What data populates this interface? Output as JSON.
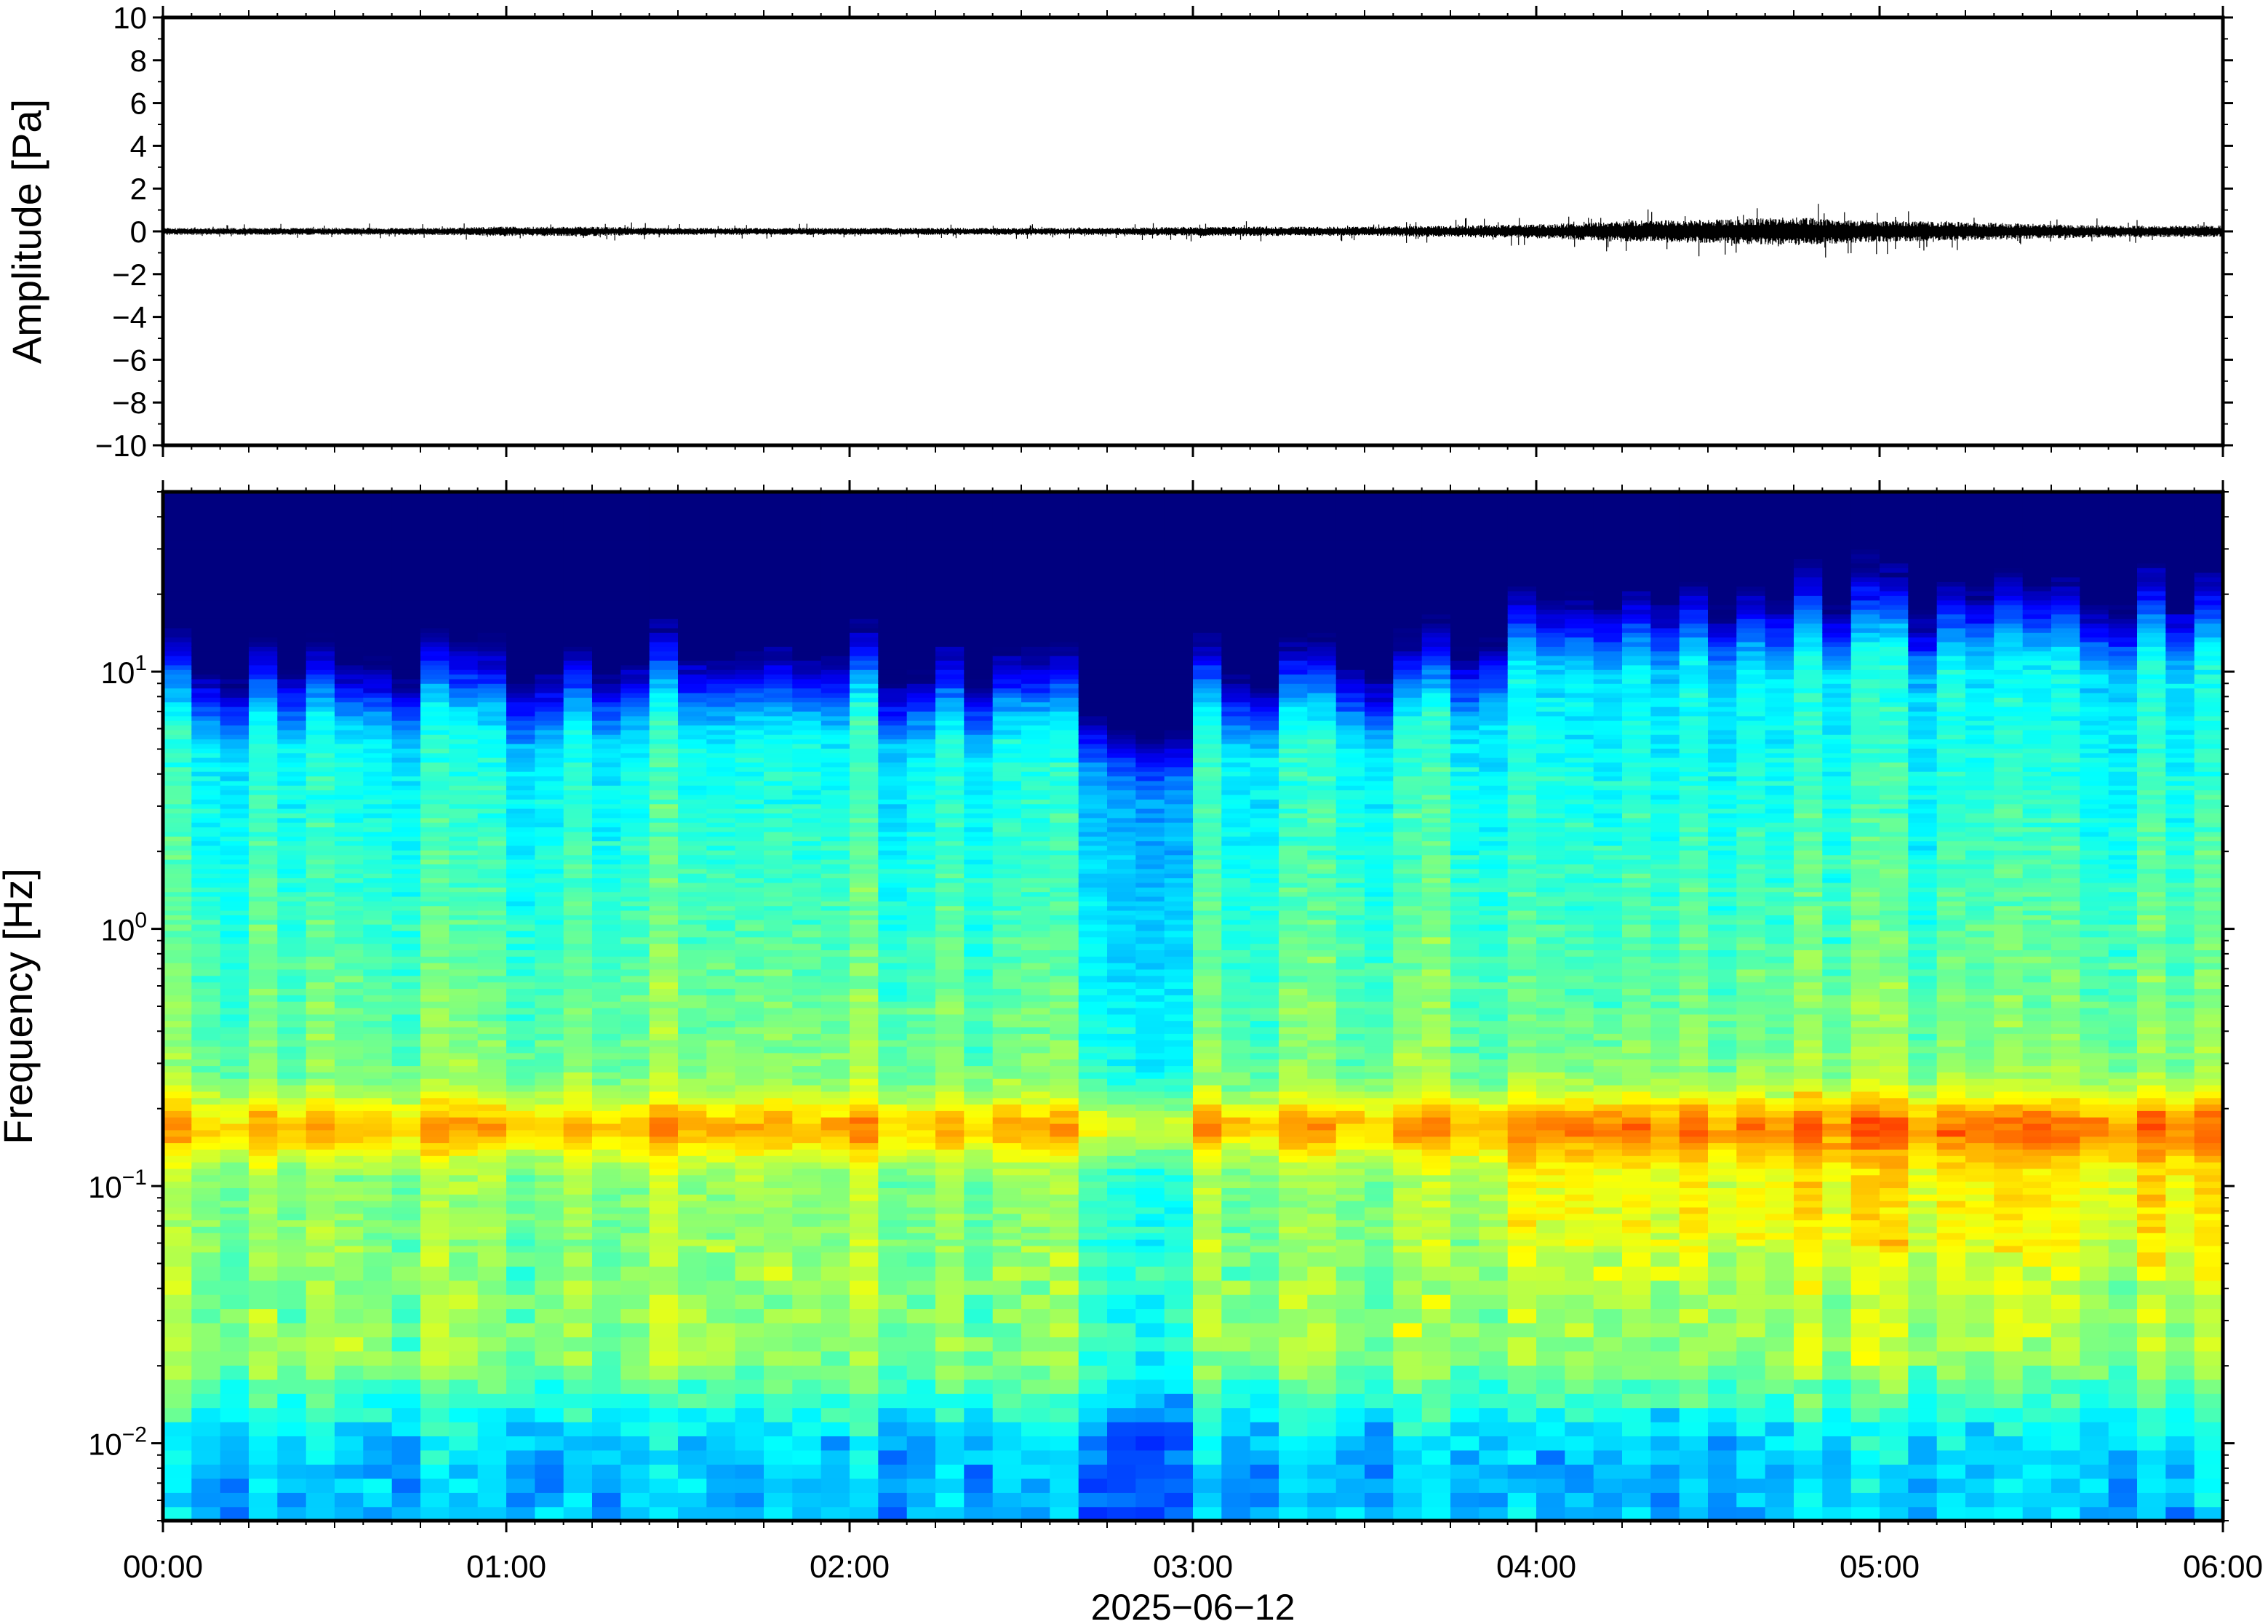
{
  "chart_data": [
    {
      "type": "line",
      "ylabel": "Amplitude [Pa]",
      "ylim": [
        -10,
        10
      ],
      "yticks": [
        "10",
        "8",
        "6",
        "4",
        "2",
        "0",
        "−2",
        "−4",
        "−6",
        "−8",
        "−10"
      ],
      "ytick_values": [
        10,
        8,
        6,
        4,
        2,
        0,
        -2,
        -4,
        -6,
        -8,
        -10
      ],
      "xlim_hours": [
        0,
        6
      ],
      "envelope": {
        "x_hours": [
          0.0,
          0.25,
          0.5,
          0.75,
          1.0,
          1.25,
          1.5,
          1.75,
          2.0,
          2.25,
          2.5,
          2.75,
          3.0,
          3.25,
          3.5,
          3.75,
          4.0,
          4.25,
          4.5,
          4.75,
          5.0,
          5.25,
          5.5,
          5.75,
          6.0
        ],
        "amplitude": [
          0.15,
          0.15,
          0.15,
          0.15,
          0.2,
          0.2,
          0.15,
          0.15,
          0.15,
          0.15,
          0.15,
          0.15,
          0.2,
          0.2,
          0.2,
          0.25,
          0.3,
          0.45,
          0.5,
          0.6,
          0.45,
          0.4,
          0.3,
          0.25,
          0.25
        ]
      },
      "grid": false,
      "line_color": "#000000"
    },
    {
      "type": "heatmap",
      "ylabel": "Frequency [Hz]",
      "yscale": "log",
      "ylim": [
        0.005,
        50
      ],
      "yticks": [
        {
          "base": "10",
          "exp": "1",
          "value": 10
        },
        {
          "base": "10",
          "exp": "0",
          "value": 1
        },
        {
          "base": "10",
          "exp": "−1",
          "value": 0.1
        },
        {
          "base": "10",
          "exp": "−2",
          "value": 0.01
        }
      ],
      "xlim_hours": [
        0,
        6
      ],
      "colormap": "jet",
      "colormap_stops": [
        "#00007f",
        "#0000ff",
        "#007fff",
        "#00ffff",
        "#7fff7f",
        "#ffff00",
        "#ff7f00",
        "#ff0000",
        "#7f0000"
      ],
      "microseism_peak_hz": 0.17,
      "grid": false
    }
  ],
  "xaxis": {
    "tick_labels": [
      "00:00",
      "01:00",
      "02:00",
      "03:00",
      "04:00",
      "05:00",
      "06:00"
    ],
    "tick_hours": [
      0,
      1,
      2,
      3,
      4,
      5,
      6
    ],
    "date_label": "2025−06−12"
  }
}
